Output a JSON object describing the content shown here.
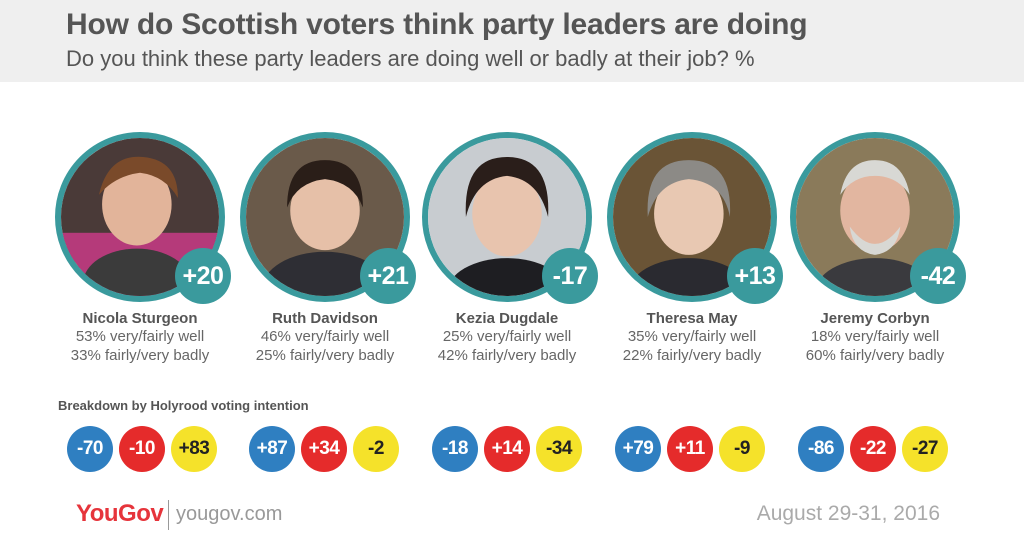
{
  "header": {
    "title": "How do Scottish voters think party leaders are doing",
    "subtitle": "Do you think these party leaders are doing well or badly at their job? %"
  },
  "colors": {
    "teal": "#3a9a9d",
    "blue": "#2f7fc1",
    "red": "#e52b2b",
    "yellow": "#f5e22a",
    "header_bg": "#efefef"
  },
  "chart_data": {
    "type": "table",
    "title": "How do Scottish voters think party leaders are doing",
    "subtitle": "Do you think these party leaders are doing well or badly at their job? %",
    "leaders": [
      {
        "name": "Nicola Sturgeon",
        "net": "+20",
        "well": "53% very/fairly well",
        "badly": "33% fairly/very badly",
        "well_pct": 53,
        "badly_pct": 33,
        "breakdown": [
          "-70",
          "-10",
          "+83"
        ]
      },
      {
        "name": "Ruth Davidson",
        "net": "+21",
        "well": "46% very/fairly well",
        "badly": "25% fairly/very badly",
        "well_pct": 46,
        "badly_pct": 25,
        "breakdown": [
          "+87",
          "+34",
          "-2"
        ]
      },
      {
        "name": "Kezia Dugdale",
        "net": "-17",
        "well": "25% very/fairly well",
        "badly": "42% fairly/very badly",
        "well_pct": 25,
        "badly_pct": 42,
        "breakdown": [
          "-18",
          "+14",
          "-34"
        ]
      },
      {
        "name": "Theresa May",
        "net": "+13",
        "well": "35% very/fairly well",
        "badly": "22% fairly/very badly",
        "well_pct": 35,
        "badly_pct": 22,
        "breakdown": [
          "+79",
          "+11",
          "-9"
        ]
      },
      {
        "name": "Jeremy Corbyn",
        "net": "-42",
        "well": "18% very/fairly well",
        "badly": "60% fairly/very badly",
        "well_pct": 18,
        "badly_pct": 60,
        "breakdown": [
          "-86",
          "-22",
          "-27"
        ]
      }
    ],
    "breakdown_title": "Breakdown by Holyrood voting intention",
    "breakdown_colors": [
      "#2f7fc1",
      "#e52b2b",
      "#f5e22a"
    ]
  },
  "footer": {
    "logo": "YouGov",
    "site": "yougov.com",
    "date": "August 29-31, 2016"
  }
}
